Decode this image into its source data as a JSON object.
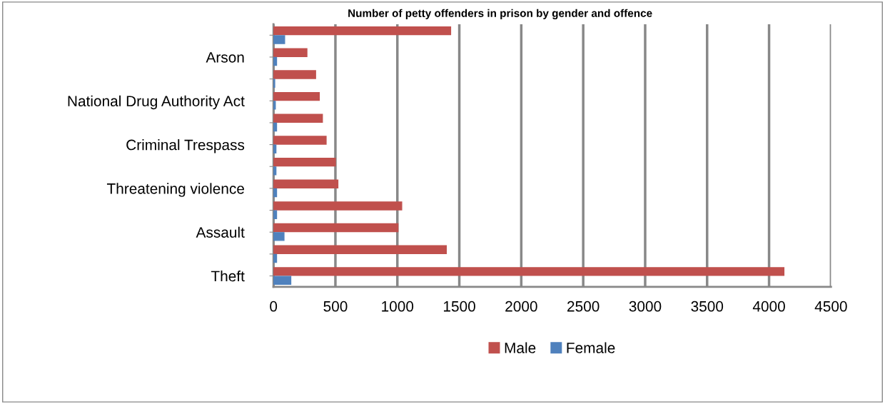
{
  "chart_data": {
    "type": "bar",
    "orientation": "horizontal",
    "title": "Number of petty offenders in prison by gender and offence",
    "categories": [
      null,
      "Arson",
      null,
      "National Drug Authority Act",
      null,
      "Criminal Trespass",
      null,
      "Threatening violence",
      null,
      "Assault",
      null,
      "Theft"
    ],
    "series": [
      {
        "name": "Male",
        "color": "#c0504d",
        "values": [
          1430,
          270,
          340,
          370,
          395,
          425,
          500,
          520,
          1035,
          1005,
          1395,
          4120
        ]
      },
      {
        "name": "Female",
        "color": "#4f81bd",
        "values": [
          90,
          25,
          10,
          15,
          25,
          20,
          20,
          25,
          25,
          85,
          25,
          140
        ]
      }
    ],
    "xlim": [
      0,
      4500
    ],
    "xticks": [
      0,
      500,
      1000,
      1500,
      2000,
      2500,
      3000,
      3500,
      4000,
      4500
    ],
    "grid": "x",
    "legend": "bottom"
  }
}
